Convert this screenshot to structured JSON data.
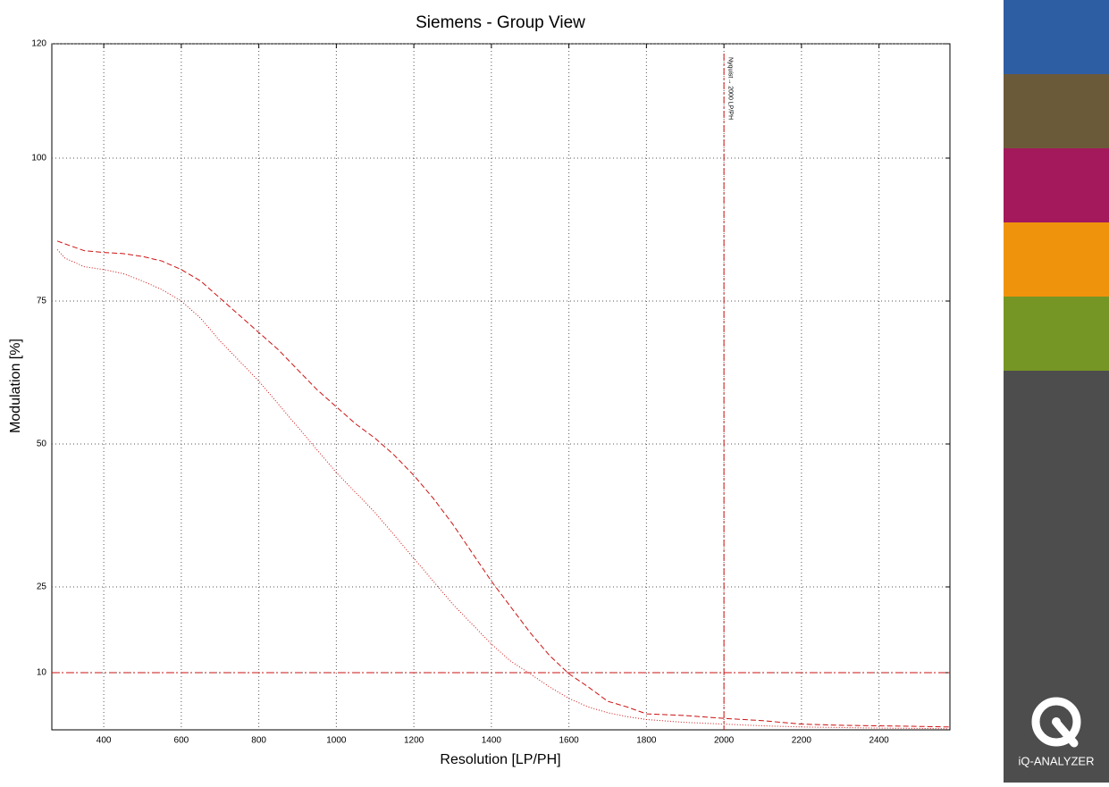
{
  "chart_data": {
    "type": "line",
    "title": "Siemens - Group View",
    "x_label": "Resolution [LP/PH]",
    "y_label": "Modulation [%]",
    "x": [
      280,
      300,
      350,
      400,
      450,
      500,
      550,
      600,
      650,
      700,
      750,
      800,
      850,
      900,
      950,
      1000,
      1050,
      1100,
      1150,
      1200,
      1250,
      1300,
      1350,
      1400,
      1450,
      1500,
      1550,
      1600,
      1650,
      1700,
      1750,
      1800,
      1900,
      2000,
      2100,
      2200,
      2300,
      2400,
      2500,
      2580
    ],
    "series": [
      {
        "color": "#cc1111",
        "style": "dashed",
        "values": [
          85.5,
          85,
          83.8,
          83.5,
          83.3,
          82.8,
          82,
          80.5,
          78.5,
          75.5,
          72.5,
          69.5,
          66.5,
          63,
          59.5,
          56.5,
          53.5,
          51,
          48,
          44.5,
          40.5,
          36,
          31,
          26,
          21.5,
          17,
          13,
          9.8,
          7.5,
          5,
          4,
          2.8,
          2.5,
          2,
          1.6,
          1,
          0.8,
          0.7,
          0.6,
          0.5
        ]
      },
      {
        "color": "#cc1111",
        "style": "dotted",
        "values": [
          84,
          82.5,
          81,
          80.5,
          79.8,
          78.5,
          77,
          75,
          72,
          68,
          64.5,
          61,
          57,
          53,
          49,
          45,
          41.5,
          38,
          34,
          30,
          26,
          22,
          18.5,
          15,
          12,
          9.8,
          7.5,
          5.5,
          4,
          3,
          2.3,
          1.8,
          1.3,
          1,
          0.7,
          0.5,
          0.4,
          0.3,
          0.25,
          0.2
        ]
      }
    ],
    "xlim": [
      266,
      2583
    ],
    "ylim": [
      0,
      120
    ],
    "xticks": [
      400,
      600,
      800,
      1000,
      1200,
      1400,
      1600,
      1800,
      2000,
      2200,
      2400
    ],
    "yticks": [
      10,
      25,
      50,
      75,
      100,
      120
    ],
    "grid": true,
    "hline": 10,
    "vline": 2000,
    "vline_label": "Nyquist→ 2000 LP/PH",
    "ref_color": "#cc1111"
  },
  "sidebar": {
    "colors": [
      "#2d5ea3",
      "#6b5a39",
      "#a3195b",
      "#f0930c",
      "#759624",
      "#4d4d4d"
    ],
    "logo": "iQ-ANALYZER"
  }
}
